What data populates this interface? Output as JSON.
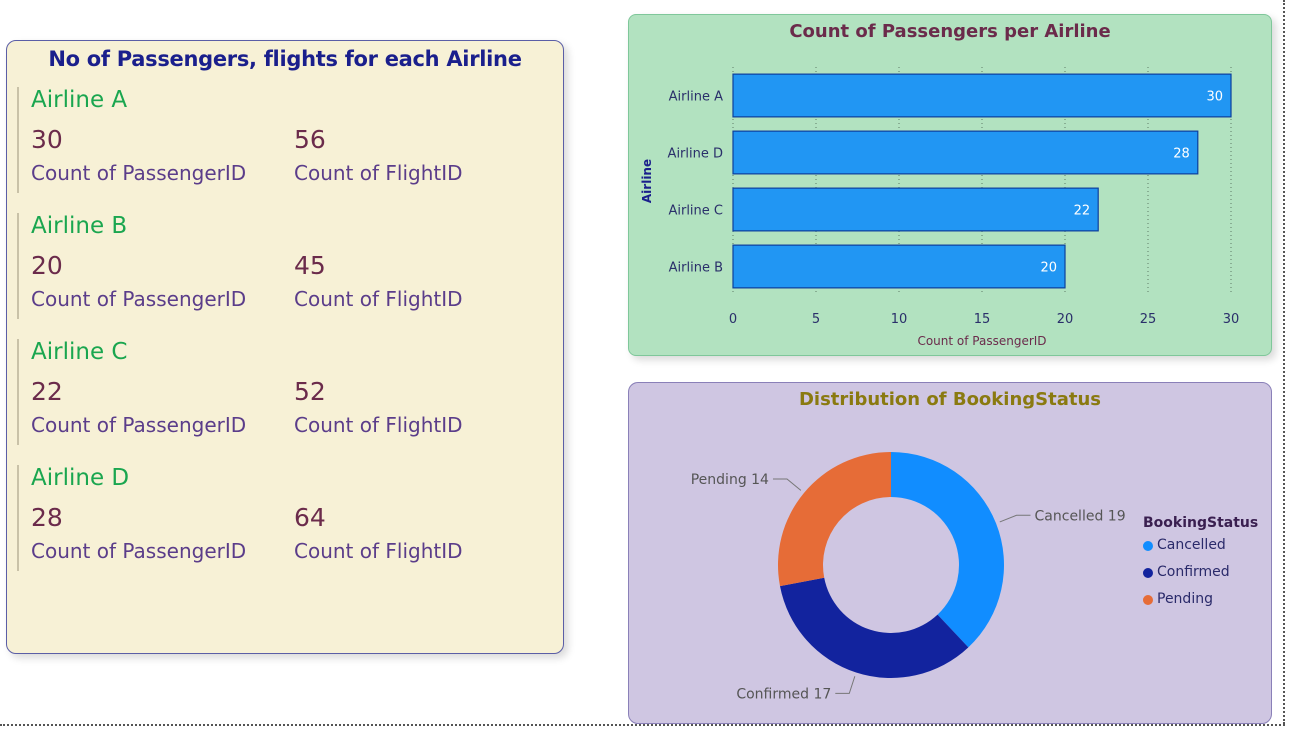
{
  "cards_panel": {
    "title": "No of Passengers, flights for each Airline",
    "airlines": [
      {
        "name": "Airline A",
        "passengers": "30",
        "flights": "56",
        "passengers_label": "Count of PassengerID",
        "flights_label": "Count of FlightID"
      },
      {
        "name": "Airline B",
        "passengers": "20",
        "flights": "45",
        "passengers_label": "Count of PassengerID",
        "flights_label": "Count of FlightID"
      },
      {
        "name": "Airline C",
        "passengers": "22",
        "flights": "52",
        "passengers_label": "Count of PassengerID",
        "flights_label": "Count of FlightID"
      },
      {
        "name": "Airline D",
        "passengers": "28",
        "flights": "64",
        "passengers_label": "Count of PassengerID",
        "flights_label": "Count of FlightID"
      }
    ]
  },
  "colors": {
    "bar_fill": "#2196f3",
    "bar_stroke": "#0d3f9c",
    "cancelled": "#118dff",
    "confirmed": "#12239e",
    "pending": "#e66c37"
  },
  "chart_data": [
    {
      "type": "bar",
      "orientation": "horizontal",
      "title": "Count of Passengers per Airline",
      "xlabel": "Count of PassengerID",
      "ylabel": "Airline",
      "categories": [
        "Airline A",
        "Airline D",
        "Airline C",
        "Airline B"
      ],
      "values": [
        30,
        28,
        22,
        20
      ],
      "xlim": [
        0,
        30
      ],
      "xticks": [
        0,
        5,
        10,
        15,
        20,
        25,
        30
      ],
      "grid": true
    },
    {
      "type": "pie",
      "style": "donut",
      "title": "Distribution of BookingStatus",
      "legend_title": "BookingStatus",
      "legend_position": "right",
      "slices": [
        {
          "label": "Cancelled",
          "value": 19
        },
        {
          "label": "Confirmed",
          "value": 17
        },
        {
          "label": "Pending",
          "value": 14
        }
      ]
    }
  ]
}
